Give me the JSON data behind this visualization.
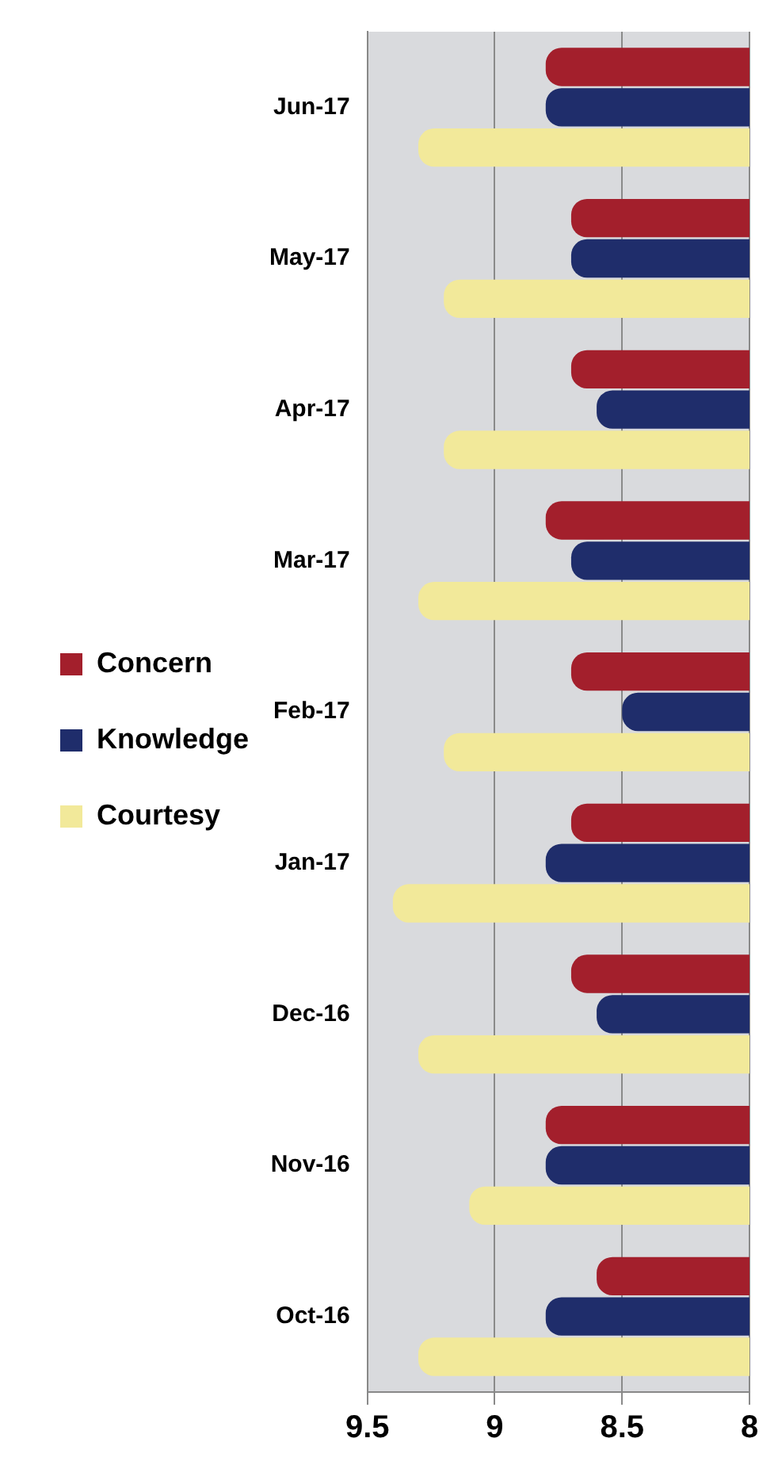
{
  "chart_data": {
    "type": "bar",
    "orientation": "horizontal",
    "categories": [
      "Jun-17",
      "May-17",
      "Apr-17",
      "Mar-17",
      "Feb-17",
      "Jan-17",
      "Dec-16",
      "Nov-16",
      "Oct-16"
    ],
    "series": [
      {
        "name": "Concern",
        "color": "#a31f2c",
        "values": [
          8.8,
          8.7,
          8.7,
          8.8,
          8.7,
          8.7,
          8.7,
          8.8,
          8.6
        ]
      },
      {
        "name": "Knowledge",
        "color": "#1f2d6b",
        "values": [
          8.8,
          8.7,
          8.6,
          8.7,
          8.5,
          8.8,
          8.6,
          8.8,
          8.8
        ]
      },
      {
        "name": "Courtesy",
        "color": "#f2e99a",
        "values": [
          9.3,
          9.2,
          9.2,
          9.3,
          9.2,
          9.4,
          9.3,
          9.1,
          9.3
        ]
      }
    ],
    "xlim": [
      9.5,
      8
    ],
    "xticks": [
      9.5,
      9,
      8.5,
      8
    ],
    "grid": "x",
    "legend": "left"
  }
}
